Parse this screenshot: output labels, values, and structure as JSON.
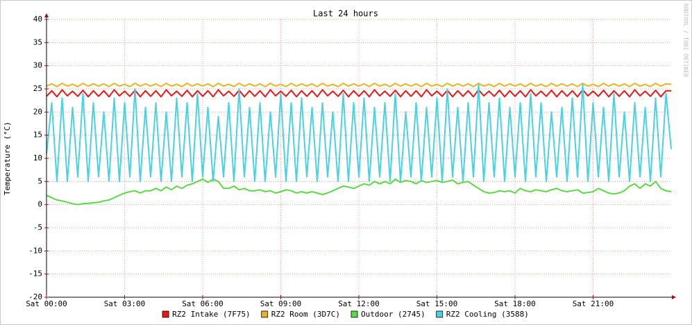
{
  "chart_data": {
    "type": "line",
    "title": "Last 24 hours",
    "y_label": "Temperature (°C)",
    "watermark": "RRDTOOL / TOBI OETIKER",
    "xlim": [
      0,
      24
    ],
    "xticks": [
      {
        "value": 0,
        "label": "Sat 00:00"
      },
      {
        "value": 3,
        "label": "Sat 03:00"
      },
      {
        "value": 6,
        "label": "Sat 06:00"
      },
      {
        "value": 9,
        "label": "Sat 09:00"
      },
      {
        "value": 12,
        "label": "Sat 12:00"
      },
      {
        "value": 15,
        "label": "Sat 15:00"
      },
      {
        "value": 18,
        "label": "Sat 18:00"
      },
      {
        "value": 21,
        "label": "Sat 21:00"
      }
    ],
    "ylim": [
      -20,
      40
    ],
    "yticks": [
      -20,
      -15,
      -10,
      -5,
      0,
      5,
      10,
      15,
      20,
      25,
      30,
      35,
      40
    ],
    "grid": true,
    "x": [
      0,
      0.2,
      0.4,
      0.6,
      0.8,
      1,
      1.2,
      1.4,
      1.6,
      1.8,
      2,
      2.2,
      2.4,
      2.6,
      2.8,
      3,
      3.2,
      3.4,
      3.6,
      3.8,
      4,
      4.2,
      4.4,
      4.6,
      4.8,
      5,
      5.2,
      5.4,
      5.6,
      5.8,
      6,
      6.2,
      6.4,
      6.6,
      6.8,
      7,
      7.2,
      7.4,
      7.6,
      7.8,
      8,
      8.2,
      8.4,
      8.6,
      8.8,
      9,
      9.2,
      9.4,
      9.6,
      9.8,
      10,
      10.2,
      10.4,
      10.6,
      10.8,
      11,
      11.2,
      11.4,
      11.6,
      11.8,
      12,
      12.2,
      12.4,
      12.6,
      12.8,
      13,
      13.2,
      13.4,
      13.6,
      13.8,
      14,
      14.2,
      14.4,
      14.6,
      14.8,
      15,
      15.2,
      15.4,
      15.6,
      15.8,
      16,
      16.2,
      16.4,
      16.6,
      16.8,
      17,
      17.2,
      17.4,
      17.6,
      17.8,
      18,
      18.2,
      18.4,
      18.6,
      18.8,
      19,
      19.2,
      19.4,
      19.6,
      19.8,
      20,
      20.2,
      20.4,
      20.6,
      20.8,
      21,
      21.2,
      21.4,
      21.6,
      21.8,
      22,
      22.2,
      22.4,
      22.6,
      22.8,
      23,
      23.2,
      23.4,
      23.6,
      23.8,
      24
    ],
    "series": [
      {
        "name": "RZ2 Intake (7F75)",
        "color": "#e81818",
        "values": [
          23.4,
          24.6,
          23.3,
          24.8,
          23.5,
          24.5,
          23.4,
          24.7,
          23.3,
          24.6,
          23.4,
          24.6,
          23.3,
          24.8,
          23.5,
          24.5,
          23.4,
          24.7,
          23.3,
          24.6,
          23.4,
          24.6,
          23.3,
          24.8,
          23.5,
          24.5,
          23.4,
          24.7,
          23.3,
          24.6,
          23.4,
          24.6,
          23.3,
          24.8,
          23.5,
          24.5,
          23.4,
          24.7,
          23.3,
          24.6,
          23.4,
          24.6,
          23.3,
          24.8,
          23.5,
          24.5,
          23.4,
          24.7,
          23.3,
          24.6,
          23.4,
          24.6,
          23.3,
          24.8,
          23.5,
          24.5,
          23.4,
          24.7,
          23.3,
          24.6,
          23.4,
          24.6,
          23.3,
          24.8,
          23.5,
          24.5,
          23.4,
          24.7,
          23.3,
          24.6,
          23.4,
          24.6,
          23.3,
          24.8,
          23.5,
          24.5,
          23.4,
          24.7,
          23.3,
          24.6,
          23.4,
          24.6,
          23.3,
          24.8,
          23.5,
          24.5,
          23.4,
          24.7,
          23.3,
          24.6,
          23.4,
          24.6,
          23.3,
          24.8,
          23.5,
          24.5,
          23.4,
          24.7,
          23.3,
          24.6,
          23.4,
          24.6,
          23.3,
          24.8,
          23.5,
          24.5,
          23.4,
          24.7,
          23.3,
          24.6,
          23.4,
          24.6,
          23.3,
          24.8,
          23.5,
          24.5,
          23.4,
          24.7,
          23.3,
          24.6,
          24.6
        ]
      },
      {
        "name": "RZ2 Room (3D7C)",
        "color": "#e6b526",
        "values": [
          25.6,
          26.1,
          25.5,
          26.2,
          25.6,
          26,
          25.5,
          26.2,
          25.6,
          26.1,
          25.6,
          26.1,
          25.5,
          26.2,
          25.6,
          26,
          25.5,
          26.2,
          25.6,
          26.1,
          25.6,
          26.1,
          25.5,
          26.2,
          25.6,
          26,
          25.5,
          26.2,
          25.6,
          26.1,
          25.6,
          26.1,
          25.5,
          26.2,
          25.6,
          26,
          25.5,
          26.2,
          25.6,
          26.1,
          25.6,
          26.1,
          25.5,
          26.2,
          25.6,
          26,
          25.5,
          26.2,
          25.6,
          26.1,
          25.6,
          26.1,
          25.5,
          26.2,
          25.6,
          26,
          25.5,
          26.2,
          25.6,
          26.1,
          25.6,
          26.1,
          25.5,
          26.2,
          25.6,
          26,
          25.5,
          26.2,
          25.6,
          26.1,
          25.6,
          26.1,
          25.5,
          26.2,
          25.6,
          26,
          25.5,
          26.2,
          25.6,
          26.1,
          25.6,
          26.1,
          25.5,
          26.2,
          25.6,
          26,
          25.5,
          26.2,
          25.6,
          26.1,
          25.6,
          26.1,
          25.5,
          26.2,
          25.6,
          26,
          25.5,
          26.2,
          25.6,
          26.1,
          25.6,
          26.1,
          25.5,
          26.2,
          25.6,
          26,
          25.5,
          26.2,
          25.6,
          26.1,
          25.6,
          26.1,
          25.5,
          26.2,
          25.6,
          26,
          25.5,
          26.2,
          25.6,
          26.1,
          26
        ]
      },
      {
        "name": "Outdoor (2745)",
        "color": "#5ad846",
        "values": [
          2,
          1.5,
          1,
          0.8,
          0.5,
          0.2,
          0,
          0.2,
          0.3,
          0.4,
          0.5,
          0.8,
          1,
          1.5,
          2,
          2.5,
          2.8,
          3,
          2.5,
          3,
          3,
          3.5,
          3,
          3.8,
          3.2,
          4,
          3.5,
          4.2,
          4.5,
          5,
          5.5,
          4.8,
          5.5,
          5,
          3.5,
          3.5,
          4,
          3.2,
          3.5,
          3,
          3,
          3.2,
          2.8,
          3,
          2.5,
          2.8,
          3.2,
          3,
          2.5,
          2.8,
          2.5,
          2.8,
          2.5,
          2.2,
          2.5,
          3,
          3.5,
          4,
          3.8,
          3.5,
          4,
          4.5,
          4.2,
          5,
          4.5,
          5,
          4.5,
          5.5,
          4.8,
          5.2,
          5,
          4.5,
          5.2,
          4.8,
          5,
          5.2,
          4.8,
          5,
          5.3,
          4.5,
          4.8,
          5,
          4.2,
          3.5,
          2.8,
          2.5,
          2.6,
          3,
          2.8,
          3,
          2.5,
          3.5,
          3,
          2.8,
          3.2,
          3,
          2.8,
          3.2,
          3.5,
          3,
          2.8,
          3,
          3.2,
          2.5,
          2.6,
          2.8,
          3.5,
          3,
          2.5,
          2.3,
          2.5,
          3,
          4,
          4.5,
          3.5,
          4.5,
          4,
          5,
          3.5,
          3,
          2.8
        ]
      },
      {
        "name": "RZ2 Cooling (3588)",
        "color": "#48d2e2",
        "values": [
          11,
          22,
          5,
          23,
          5,
          21,
          6,
          24,
          5,
          22,
          6,
          20,
          5,
          23,
          5,
          22,
          6,
          25,
          5,
          21,
          6,
          22,
          5,
          20,
          5,
          23,
          6,
          22,
          5,
          24,
          6,
          21,
          5,
          19,
          6,
          22,
          5,
          25,
          6,
          21,
          5,
          22,
          5,
          20,
          6,
          24,
          5,
          22,
          5,
          23,
          6,
          21,
          5,
          22,
          6,
          20,
          5,
          24,
          5,
          22,
          6,
          23,
          5,
          21,
          6,
          22,
          5,
          24,
          5,
          20,
          6,
          22,
          5,
          21,
          6,
          23,
          5,
          25,
          6,
          21,
          5,
          22,
          6,
          26,
          5,
          22,
          6,
          23,
          5,
          21,
          6,
          22,
          5,
          24,
          6,
          22,
          5,
          20,
          6,
          21,
          5,
          23,
          6,
          26,
          5,
          22,
          6,
          21,
          5,
          24,
          6,
          20,
          5,
          22,
          6,
          21,
          5,
          23,
          6,
          24,
          12
        ]
      }
    ]
  }
}
